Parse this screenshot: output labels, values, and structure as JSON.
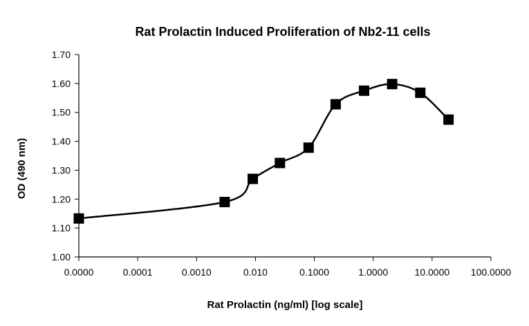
{
  "chart_data": {
    "type": "scatter",
    "title": "Rat Prolactin Induced Proliferation of Nb2-11 cells",
    "xlabel": "Rat Prolactin (ng/ml) [log scale]",
    "ylabel": "OD (490 nm)",
    "x_scale": "log",
    "x_tick_labels": [
      "0.0000",
      "0.0001",
      "0.0010",
      "0.010",
      "0.1000",
      "1.0000",
      "10.0000",
      "100.0000"
    ],
    "y_tick_labels": [
      "1.00",
      "1.10",
      "1.20",
      "1.30",
      "1.40",
      "1.50",
      "1.60",
      "1.70"
    ],
    "ylim": [
      1.0,
      1.7
    ],
    "grid": false,
    "marker": "square",
    "line": "smoothed",
    "series": [
      {
        "x": [
          1e-05,
          0.003,
          0.009,
          0.026,
          0.08,
          0.23,
          0.7,
          2.1,
          6.3,
          19
        ],
        "y": [
          1.133,
          1.19,
          1.27,
          1.325,
          1.378,
          1.528,
          1.575,
          1.598,
          1.568,
          1.475
        ]
      }
    ]
  }
}
